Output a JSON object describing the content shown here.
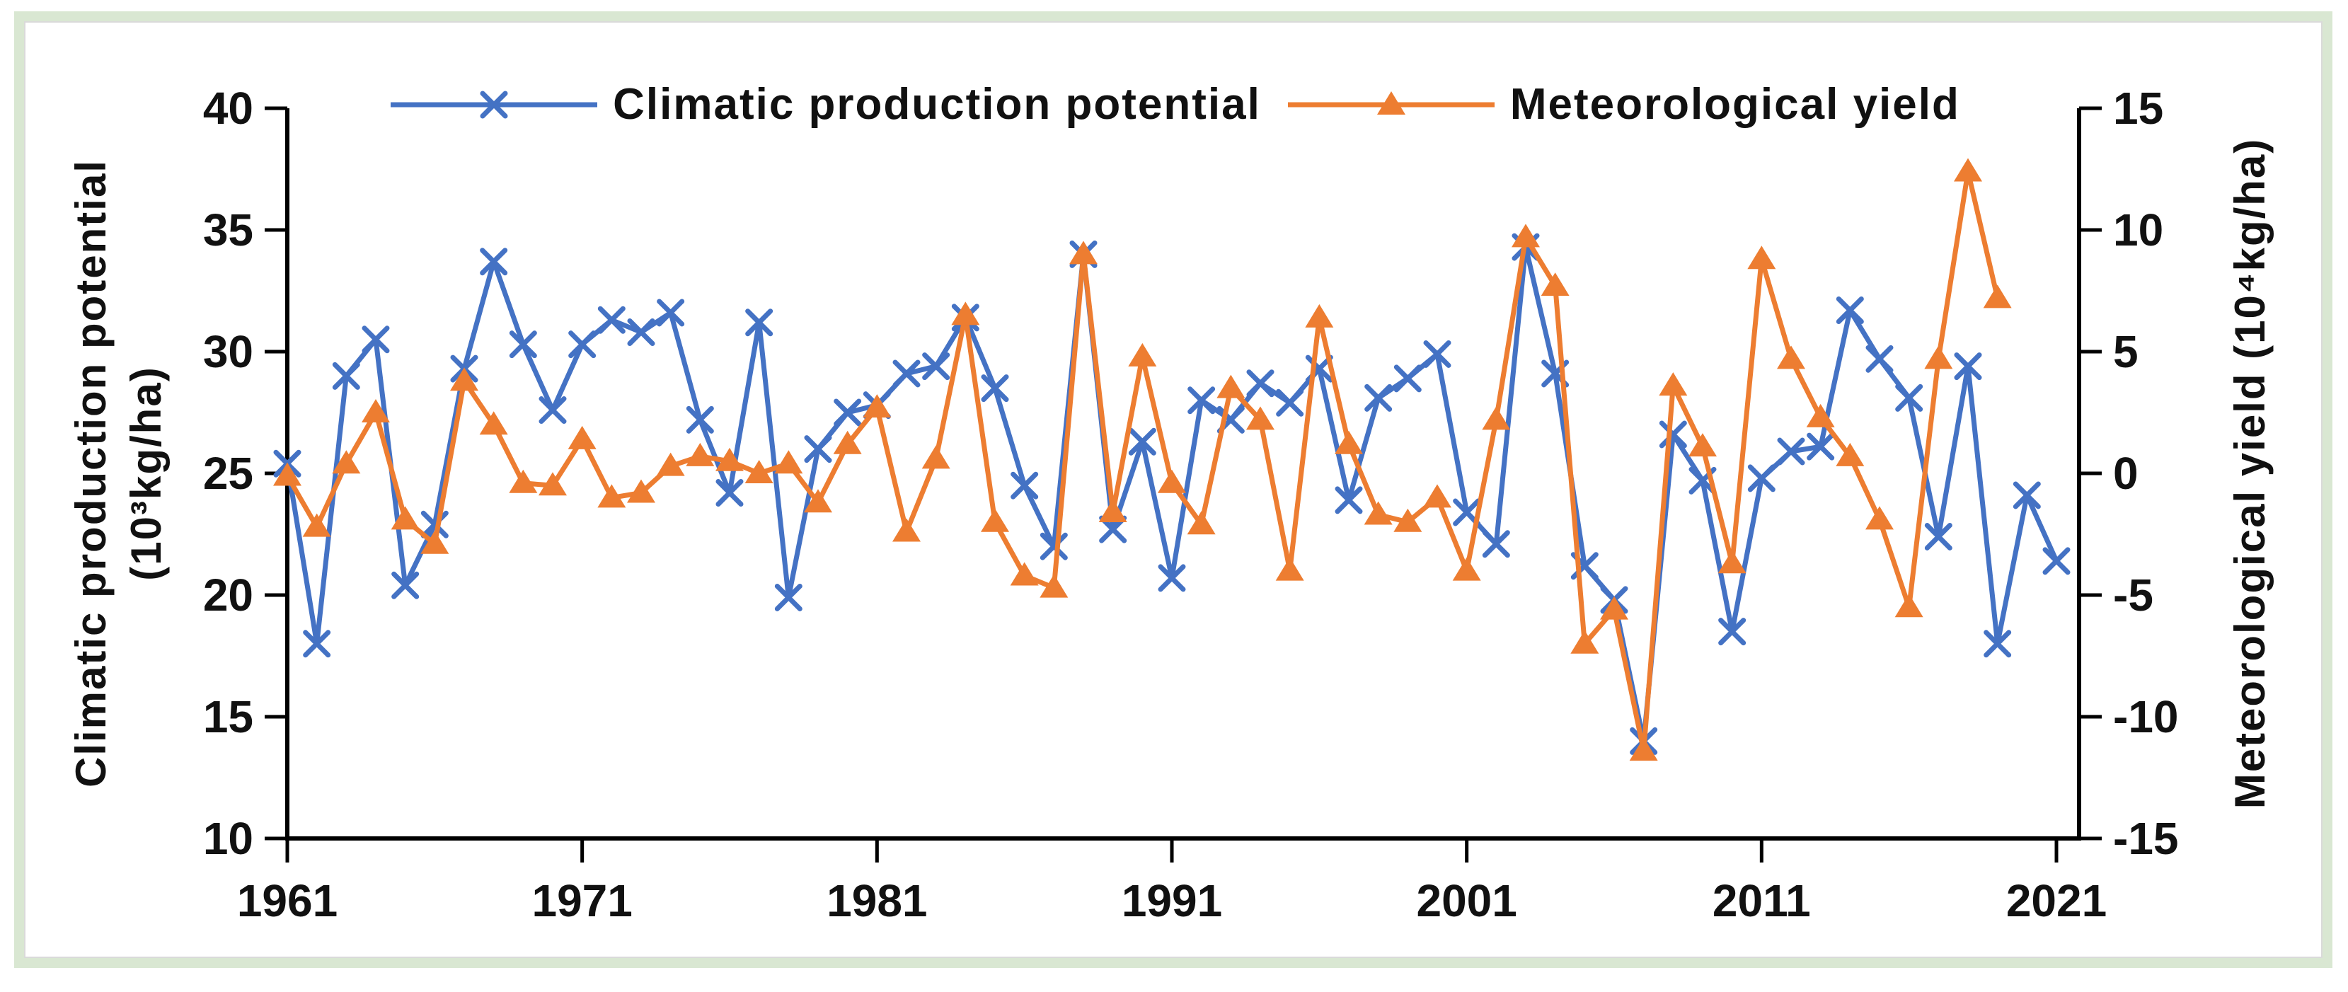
{
  "chart_data": {
    "type": "line",
    "title": "",
    "years": [
      1961,
      1962,
      1963,
      1964,
      1965,
      1966,
      1967,
      1968,
      1969,
      1970,
      1971,
      1972,
      1973,
      1974,
      1975,
      1976,
      1977,
      1978,
      1979,
      1980,
      1981,
      1982,
      1983,
      1984,
      1985,
      1986,
      1987,
      1988,
      1989,
      1990,
      1991,
      1992,
      1993,
      1994,
      1995,
      1996,
      1997,
      1998,
      1999,
      2000,
      2001,
      2002,
      2003,
      2004,
      2005,
      2006,
      2007,
      2008,
      2009,
      2010,
      2011,
      2012,
      2013,
      2014,
      2015,
      2016,
      2017,
      2018,
      2019,
      2020,
      2021
    ],
    "series": [
      {
        "name": "Climatic production potential",
        "axis": "left",
        "color": "#4472C4",
        "marker": "x",
        "values": [
          25.4,
          18.0,
          29.0,
          30.5,
          20.4,
          22.9,
          29.3,
          33.7,
          30.3,
          27.6,
          30.3,
          31.3,
          30.8,
          31.6,
          27.2,
          24.2,
          31.2,
          19.9,
          26.0,
          27.5,
          27.8,
          29.1,
          29.4,
          31.4,
          28.5,
          24.5,
          22.0,
          34.0,
          22.7,
          26.3,
          20.7,
          28.0,
          27.2,
          28.7,
          27.9,
          29.3,
          23.9,
          28.1,
          28.9,
          29.9,
          23.4,
          22.1,
          34.3,
          29.1,
          21.2,
          19.8,
          14.0,
          26.6,
          24.7,
          18.5,
          24.8,
          25.9,
          26.1,
          31.7,
          29.7,
          28.1,
          22.4,
          29.4,
          18.0,
          24.1,
          21.4
        ]
      },
      {
        "name": "Meteorological yield",
        "axis": "right",
        "color": "#ED7D31",
        "marker": "triangle",
        "values": [
          -0.1,
          -2.2,
          0.4,
          2.5,
          -1.9,
          -2.9,
          3.8,
          2.0,
          -0.4,
          -0.5,
          1.4,
          -1.0,
          -0.8,
          0.3,
          0.7,
          0.5,
          0.0,
          0.4,
          -1.2,
          1.2,
          2.7,
          -2.4,
          0.6,
          6.5,
          -2.0,
          -4.2,
          -4.7,
          9.0,
          -1.6,
          4.8,
          -0.4,
          -2.1,
          3.5,
          2.2,
          -4.0,
          6.4,
          1.2,
          -1.7,
          -2.0,
          -1.0,
          -4.0,
          2.2,
          9.7,
          7.7,
          -7.0,
          -5.6,
          -11.4,
          3.6,
          1.1,
          -3.7,
          8.8,
          4.7,
          2.3,
          0.7,
          -1.9,
          -5.5,
          4.7,
          12.4,
          7.2,
          null,
          null
        ]
      }
    ],
    "left_axis": {
      "title_line1": "Climatic production potential",
      "title_line2": "(10³kg/ha)",
      "ticks": [
        40,
        35,
        30,
        25,
        20,
        15,
        10
      ],
      "range": [
        10,
        40
      ]
    },
    "right_axis": {
      "title": "Meteorological yield  (10⁴kg/ha)",
      "ticks": [
        15,
        10,
        5,
        0,
        -5,
        -10,
        -15
      ],
      "range": [
        -15,
        15
      ]
    },
    "x_axis": {
      "ticks": [
        1961,
        1971,
        1981,
        1991,
        2001,
        2011,
        2021
      ],
      "range": [
        1961,
        2021.8
      ]
    },
    "legend_position": "top-center",
    "grid": false
  },
  "colors": {
    "axis": "#000000",
    "background": "#ffffff",
    "frame_green": "#d9e7d2",
    "frame_gray": "#dadada",
    "series_blue": "#4472C4",
    "series_orange": "#ED7D31"
  }
}
